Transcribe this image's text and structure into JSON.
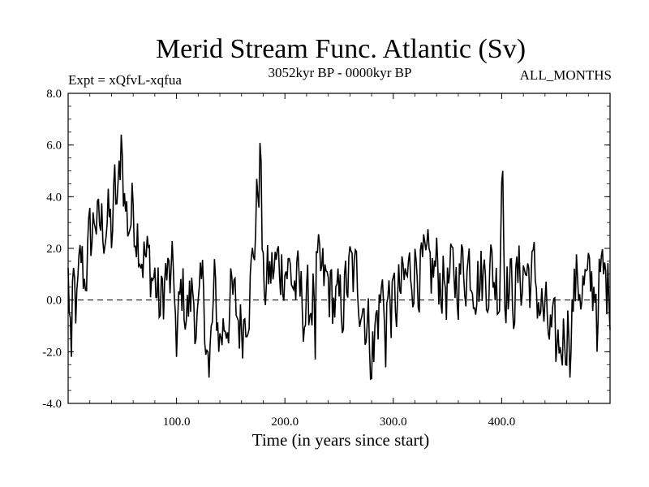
{
  "chart_data": {
    "type": "line",
    "title": "Merid Stream Func. Atlantic (Sv)",
    "left_label": "Expt = xQfvL-xqfua",
    "center_label": "3052kyr BP - 0000kyr BP",
    "right_label": "ALL_MONTHS",
    "xlabel": "Time (in years since start)",
    "ylabel": "",
    "xlim": [
      0,
      500
    ],
    "ylim": [
      -4,
      8
    ],
    "x_ticks": [
      100,
      200,
      300,
      400
    ],
    "x_tick_labels": [
      "100.0",
      "200.0",
      "300.0",
      "400.0"
    ],
    "y_ticks": [
      -4,
      -2,
      0,
      2,
      4,
      6,
      8
    ],
    "y_tick_labels": [
      "-4.0",
      "-2.0",
      "0.0",
      "2.0",
      "4.0",
      "6.0",
      "8.0"
    ],
    "zero_line": 0,
    "series": [
      {
        "name": "Merid Stream Func. Atlantic",
        "keypoints_x": [
          0,
          3,
          5,
          8,
          12,
          15,
          18,
          22,
          25,
          28,
          30,
          33,
          36,
          40,
          43,
          46,
          49,
          52,
          55,
          60,
          64,
          68,
          72,
          76,
          80,
          85,
          90,
          95,
          98,
          100,
          105,
          110,
          115,
          120,
          125,
          130,
          135,
          140,
          150,
          160,
          170,
          177,
          180,
          190,
          200,
          210,
          220,
          230,
          240,
          250,
          260,
          270,
          280,
          290,
          300,
          310,
          320,
          330,
          340,
          350,
          360,
          370,
          380,
          390,
          398,
          400,
          403,
          410,
          420,
          430,
          440,
          450,
          460,
          470,
          480,
          490,
          500
        ],
        "keypoints_y": [
          0.8,
          -1.8,
          0.2,
          -0.5,
          1.5,
          0.8,
          1.8,
          2.5,
          3.5,
          2.5,
          2.8,
          3.0,
          3.2,
          2.5,
          4.0,
          3.5,
          6.4,
          4.0,
          3.0,
          3.5,
          3.0,
          2.0,
          1.5,
          1.2,
          0.8,
          -0.5,
          1.0,
          0.5,
          0.8,
          -1.8,
          0.5,
          -0.5,
          0.3,
          -1.0,
          0.5,
          -3.0,
          0.2,
          -1.5,
          0.0,
          -1.0,
          1.2,
          5.4,
          0.5,
          1.2,
          1.5,
          0.5,
          -0.5,
          0.8,
          0.5,
          -0.5,
          1.0,
          0.5,
          -1.8,
          0.3,
          -0.3,
          0.5,
          1.5,
          0.8,
          1.2,
          0.5,
          1.0,
          1.5,
          0.8,
          1.2,
          0.5,
          5.0,
          1.0,
          0.2,
          1.2,
          0.8,
          -0.8,
          -2.0,
          -1.0,
          0.8,
          0.3,
          0.8,
          0.5
        ],
        "spikes": [
          {
            "x": 3,
            "y": -2.2
          },
          {
            "x": 49,
            "y": 6.4
          },
          {
            "x": 100,
            "y": -2.2
          },
          {
            "x": 130,
            "y": -3.0
          },
          {
            "x": 178,
            "y": 5.4
          },
          {
            "x": 228,
            "y": -2.3
          },
          {
            "x": 282,
            "y": -2.4
          },
          {
            "x": 293,
            "y": -2.6
          },
          {
            "x": 401,
            "y": 5.0
          },
          {
            "x": 455,
            "y": -2.2
          },
          {
            "x": 463,
            "y": -3.0
          },
          {
            "x": 488,
            "y": -2.0
          }
        ],
        "noise_amplitude": 0.9
      }
    ]
  }
}
